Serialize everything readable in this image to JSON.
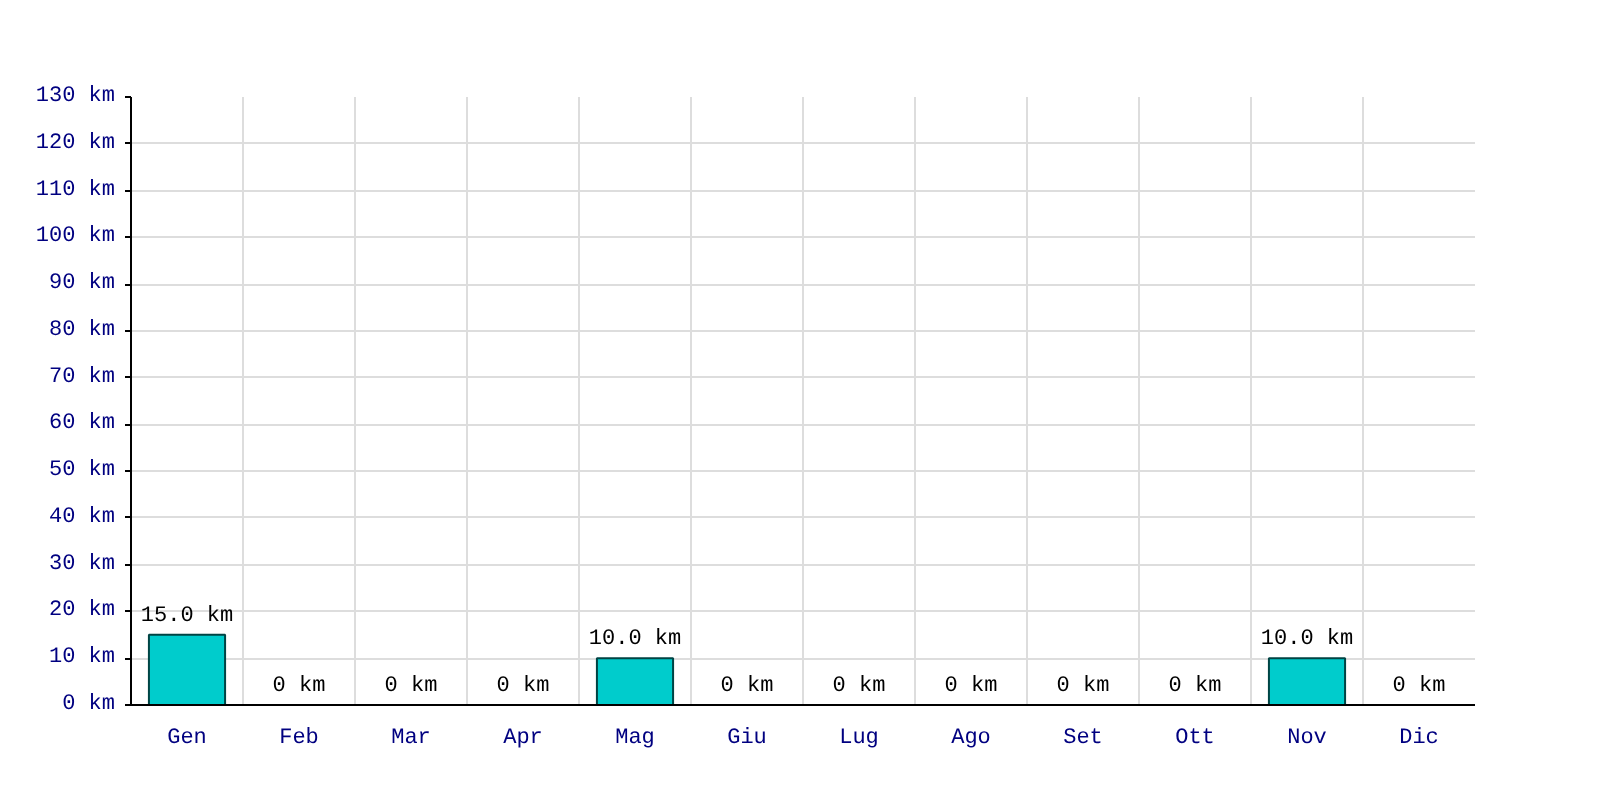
{
  "chart_data": {
    "type": "bar",
    "categories": [
      "Gen",
      "Feb",
      "Mar",
      "Apr",
      "Mag",
      "Giu",
      "Lug",
      "Ago",
      "Set",
      "Ott",
      "Nov",
      "Dic"
    ],
    "values": [
      15,
      0,
      0,
      0,
      10,
      0,
      0,
      0,
      0,
      0,
      10,
      0
    ],
    "value_labels": [
      "15.0 km",
      "0 km",
      "0 km",
      "0 km",
      "10.0 km",
      "0 km",
      "0 km",
      "0 km",
      "0 km",
      "0 km",
      "10.0 km",
      "0 km"
    ],
    "color": "#00cccc",
    "ylim": [
      0,
      130
    ],
    "yticks": [
      {
        "value": 0,
        "label": "0 km"
      },
      {
        "value": 10,
        "label": "10 km"
      },
      {
        "value": 20,
        "label": "20 km"
      },
      {
        "value": 30,
        "label": "30 km"
      },
      {
        "value": 40,
        "label": "40 km"
      },
      {
        "value": 50,
        "label": "50 km"
      },
      {
        "value": 60,
        "label": "60 km"
      },
      {
        "value": 70,
        "label": "70 km"
      },
      {
        "value": 80,
        "label": "80 km"
      },
      {
        "value": 90,
        "label": "90 km"
      },
      {
        "value": 100,
        "label": "100 km"
      },
      {
        "value": 110,
        "label": "110 km"
      },
      {
        "value": 120,
        "label": "120 km"
      },
      {
        "value": 130,
        "label": "130 km"
      }
    ],
    "grid": true
  }
}
